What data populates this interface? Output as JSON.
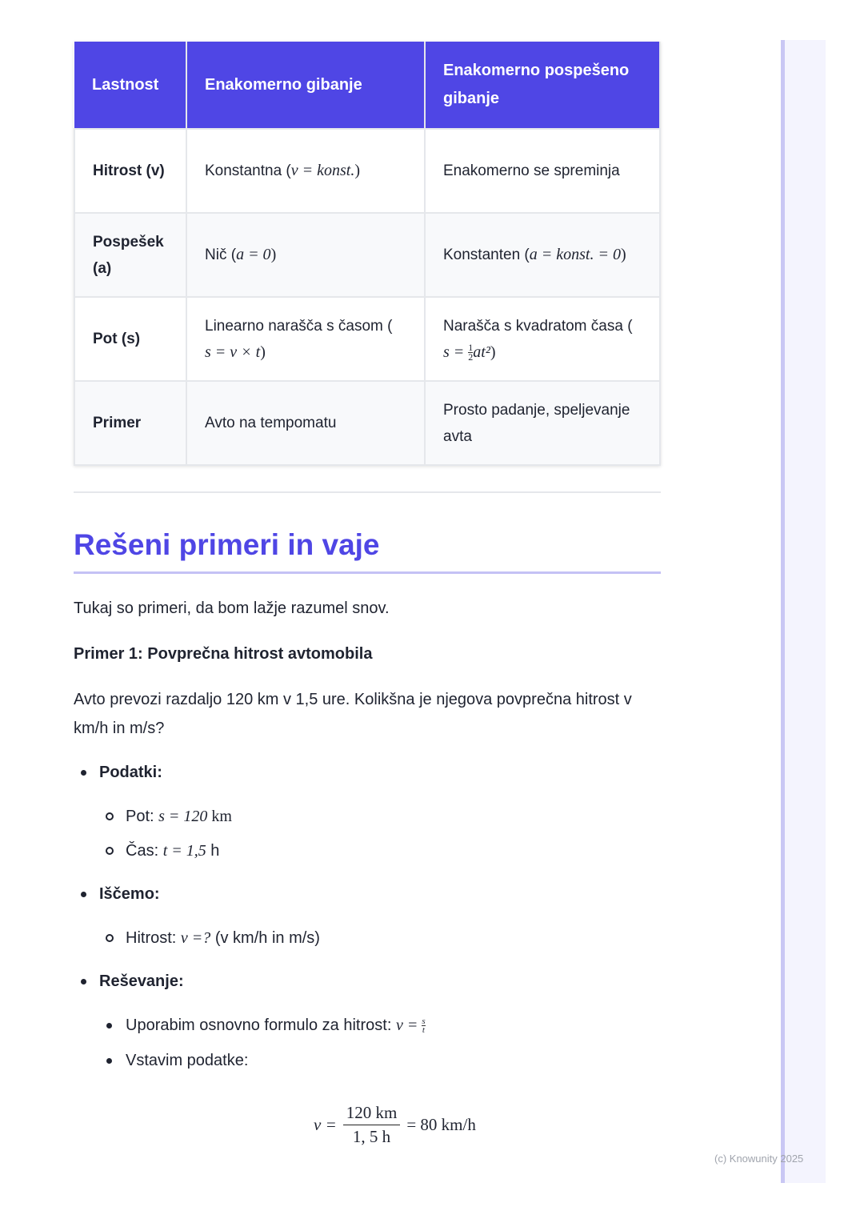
{
  "table": {
    "headers": [
      "Lastnost",
      "Enakomerno gibanje",
      "Enakomerno pospešeno gibanje"
    ],
    "rows": [
      {
        "key": "Hitrost (v)",
        "c1": "Konstantna (",
        "c1m": "v = konst.",
        "c1e": ")",
        "c2": "Enakomerno se spreminja"
      },
      {
        "key": "Pospešek (a)",
        "c1": "Nič (",
        "c1m": "a = 0",
        "c1e": ")",
        "c2": "Konstanten (",
        "c2m": "a = konst. = 0",
        "c2e": ")"
      },
      {
        "key": "Pot (s)",
        "c1": "Linearno narašča s časom (",
        "c1m": "s = v × t",
        "c1e": ")",
        "c2": "Narašča s kvadratom časa (",
        "c2m": "s = ",
        "c2n": "1",
        "c2d": "2",
        "c2m2": "at²",
        "c2e": ")"
      },
      {
        "key": "Primer",
        "c1": "Avto na tempomatu",
        "c2": "Prosto padanje, speljevanje avta"
      }
    ]
  },
  "heading": "Rešeni primeri in vaje",
  "intro": "Tukaj so primeri, da bom lažje razumel snov.",
  "example_title": "Primer 1: Povprečna hitrost avtomobila",
  "problem": "Avto prevozi razdaljo 120 km v 1,5 ure. Kolikšna je njegova povprečna hitrost v km/h in m/s?",
  "list": {
    "data_label": "Podatki:",
    "data_items": [
      {
        "label": "Pot: ",
        "math": "s = 120",
        "unit": " km"
      },
      {
        "label": "Čas: ",
        "math": "t = 1,5",
        "unit": " h"
      }
    ],
    "seek_label": "Iščemo:",
    "seek_item": {
      "label": "Hitrost: ",
      "math": "v =?",
      "rest": " (v km/h in m/s)"
    },
    "solve_label": "Reševanje:",
    "solve_items": [
      {
        "label": "Uporabim osnovno formulo za hitrost: ",
        "math": "v = ",
        "num": "s",
        "den": "t"
      },
      {
        "label": "Vstavim podatke:"
      }
    ]
  },
  "equation": {
    "lhs": "v =",
    "num": "120 km",
    "den": "1, 5 h",
    "rhs": "= 80 km/h"
  },
  "footer": "(c) Knowunity 2025",
  "colors": {
    "accent": "#4f46e5",
    "sidebar": "#f4f4fe",
    "sidebar_border": "#c9c7f4"
  }
}
